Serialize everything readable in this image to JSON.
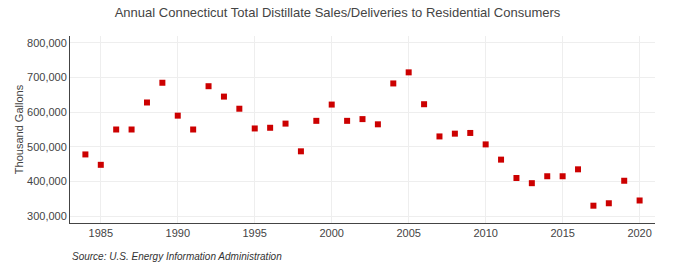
{
  "chart_data": {
    "type": "scatter",
    "title": "Annual Connecticut Total Distillate Sales/Deliveries to Residential Consumers",
    "ylabel": "Thousand Gallons",
    "annotation": "Source: U.S. Energy Information Administration",
    "x": [
      1984,
      1985,
      1986,
      1987,
      1988,
      1989,
      1990,
      1991,
      1992,
      1993,
      1994,
      1995,
      1996,
      1997,
      1998,
      1999,
      2000,
      2001,
      2002,
      2003,
      2004,
      2005,
      2006,
      2007,
      2008,
      2009,
      2010,
      2011,
      2012,
      2013,
      2014,
      2015,
      2016,
      2017,
      2018,
      2019,
      2020
    ],
    "values": [
      478000,
      448000,
      550000,
      550000,
      628000,
      685000,
      590000,
      550000,
      675000,
      645000,
      610000,
      553000,
      555000,
      567000,
      487000,
      575000,
      622000,
      575000,
      580000,
      565000,
      683000,
      715000,
      623000,
      530000,
      538000,
      540000,
      507000,
      463000,
      410000,
      395000,
      415000,
      415000,
      435000,
      330000,
      337000,
      402000,
      345000
    ],
    "color": "#cc0000",
    "marker": "square",
    "xlim": [
      1983,
      2021
    ],
    "xticks": [
      1985,
      1990,
      1995,
      2000,
      2005,
      2010,
      2015,
      2020
    ],
    "ylim": [
      280000,
      820000
    ],
    "yticks": [
      {
        "value": 300000,
        "label": "300,000"
      },
      {
        "value": 400000,
        "label": "400,000"
      },
      {
        "value": 500000,
        "label": "500,000"
      },
      {
        "value": 600000,
        "label": "600,000"
      },
      {
        "value": 700000,
        "label": "700,000"
      },
      {
        "value": 800000,
        "label": "800,000"
      }
    ],
    "grid": true
  }
}
